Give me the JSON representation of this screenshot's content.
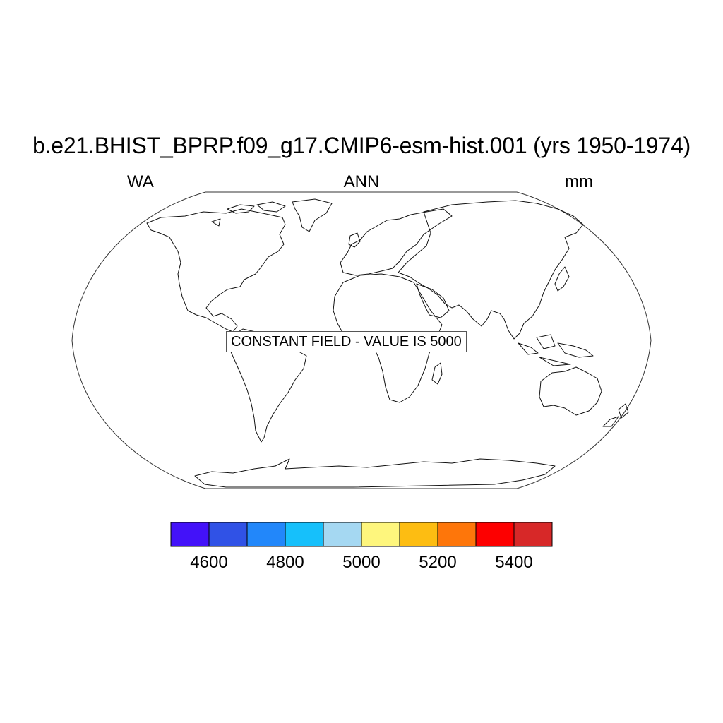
{
  "title": "b.e21.BHIST_BPRP.f09_g17.CMIP6-esm-hist.001 (yrs 1950-1974)",
  "left_label": "WA",
  "center_label": "ANN",
  "right_label": "mm",
  "annotation": "CONSTANT FIELD - VALUE IS 5000",
  "map": {
    "projection": "robinson",
    "coastlines": true,
    "fill": "#ffffff",
    "line_color": "#000000"
  },
  "colorbar": {
    "colors": [
      "#4312f9",
      "#3052e6",
      "#2287fa",
      "#16c0fb",
      "#a5d8f2",
      "#fef67d",
      "#fdbd12",
      "#fe760a",
      "#fd0000",
      "#d72828"
    ],
    "tick_values": [
      4600,
      4800,
      5000,
      5200,
      5400
    ],
    "tick_labels": [
      "4600",
      "4800",
      "5000",
      "5200",
      "5400"
    ]
  }
}
